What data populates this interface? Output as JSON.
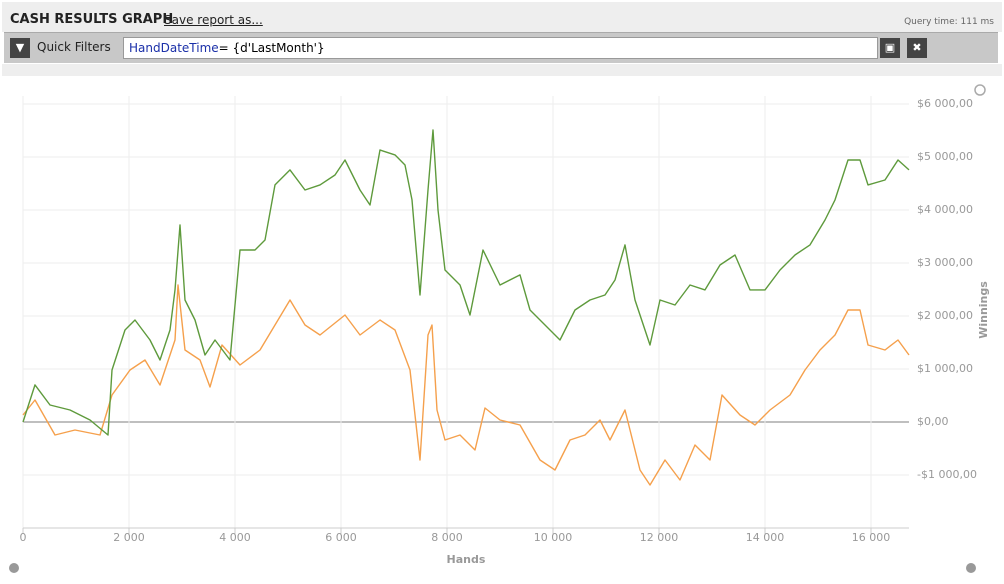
{
  "header": {
    "title": "CASH RESULTS GRAPH",
    "save_link": "Save report as...",
    "query_time": "Query time: 111 ms"
  },
  "filter_bar": {
    "label": "Quick Filters",
    "field": "HandDateTime",
    "expression": "= {d'LastMonth'}"
  },
  "chart_data": {
    "type": "line",
    "xlabel": "Hands",
    "ylabel": "Winnings",
    "xlim": [
      0,
      16717
    ],
    "ylim": [
      -2000,
      6150
    ],
    "xticks": [
      0,
      {
        "value": 2000,
        "label": "2 000"
      },
      {
        "value": 4000,
        "label": "4 000"
      },
      {
        "value": 6000,
        "label": "6 000"
      },
      {
        "value": 8000,
        "label": "8 000"
      },
      {
        "value": 10000,
        "label": "10 000"
      },
      {
        "value": 12000,
        "label": "12 000"
      },
      {
        "value": 14000,
        "label": "14 000"
      },
      {
        "value": 16000,
        "label": "16 000"
      }
    ],
    "yticks": [
      {
        "value": -1000,
        "label": "-$1 000,00"
      },
      {
        "value": 0,
        "label": "$0,00"
      },
      {
        "value": 1000,
        "label": "$1 000,00"
      },
      {
        "value": 2000,
        "label": "$2 000,00"
      },
      {
        "value": 3000,
        "label": "$3 000,00"
      },
      {
        "value": 4000,
        "label": "$4 000,00"
      },
      {
        "value": 5000,
        "label": "$5 000,00"
      },
      {
        "value": 6000,
        "label": "$6 000,00"
      }
    ],
    "grid": true,
    "series": [
      {
        "color": "#5e9a3c",
        "x": [
          0,
          226,
          509,
          887,
          1264,
          1604,
          1679,
          1925,
          2113,
          2396,
          2585,
          2774,
          2868,
          2962,
          3057,
          3245,
          3434,
          3623,
          3906,
          4094,
          4377,
          4566,
          4755,
          5038,
          5321,
          5604,
          5887,
          6075,
          6358,
          6547,
          6736,
          7019,
          7208,
          7340,
          7491,
          7642,
          7736,
          7830,
          7962,
          8245,
          8434,
          8679,
          9000,
          9377,
          9566,
          9849,
          10132,
          10415,
          10698,
          10981,
          11170,
          11358,
          11547,
          11830,
          12019,
          12302,
          12585,
          12868,
          13151,
          13434,
          13717,
          14000,
          14283,
          14566,
          14849,
          15132,
          15321,
          15566,
          15792,
          15943,
          16264,
          16509,
          16717
        ],
        "values": [
          0,
          700,
          320,
          226,
          38,
          -245,
          981,
          1736,
          1925,
          1547,
          1170,
          1736,
          2491,
          3717,
          2302,
          1925,
          1264,
          1547,
          1170,
          3245,
          3245,
          3434,
          4472,
          4755,
          4377,
          4472,
          4660,
          4943,
          4377,
          4094,
          5132,
          5038,
          4849,
          4189,
          2396,
          4377,
          5509,
          4000,
          2868,
          2585,
          2019,
          3245,
          2585,
          2774,
          2113,
          1830,
          1547,
          2113,
          2302,
          2396,
          2679,
          3340,
          2302,
          1453,
          2302,
          2208,
          2585,
          2491,
          2962,
          3151,
          2491,
          2491,
          2868,
          3151,
          3340,
          3811,
          4189,
          4943,
          4943,
          4472,
          4566,
          4943,
          4755
        ]
      },
      {
        "color": "#f5a04c",
        "x": [
          0,
          226,
          604,
          981,
          1453,
          1679,
          2019,
          2302,
          2585,
          2868,
          2925,
          3057,
          3340,
          3528,
          3755,
          4094,
          4472,
          4755,
          5038,
          5321,
          5604,
          6075,
          6358,
          6736,
          7019,
          7302,
          7491,
          7642,
          7717,
          7811,
          7962,
          8245,
          8528,
          8717,
          9000,
          9377,
          9755,
          10038,
          10321,
          10604,
          10887,
          11075,
          11358,
          11642,
          11830,
          12113,
          12396,
          12679,
          12962,
          13189,
          13528,
          13811,
          14094,
          14472,
          14755,
          15038,
          15321,
          15566,
          15792,
          15943,
          16264,
          16509,
          16717
        ],
        "values": [
          132,
          415,
          -245,
          -151,
          -245,
          509,
          981,
          1170,
          698,
          1547,
          2585,
          1358,
          1170,
          660,
          1453,
          1075,
          1358,
          1830,
          2302,
          1830,
          1642,
          2019,
          1642,
          1925,
          1736,
          981,
          -717,
          1642,
          1830,
          226,
          -340,
          -245,
          -528,
          264,
          38,
          -57,
          -717,
          -906,
          -340,
          -245,
          38,
          -340,
          226,
          -906,
          -1189,
          -717,
          -1094,
          -434,
          -717,
          509,
          132,
          -57,
          226,
          509,
          981,
          1358,
          1642,
          2113,
          2113,
          1453,
          1358,
          1547,
          1264
        ]
      }
    ]
  }
}
